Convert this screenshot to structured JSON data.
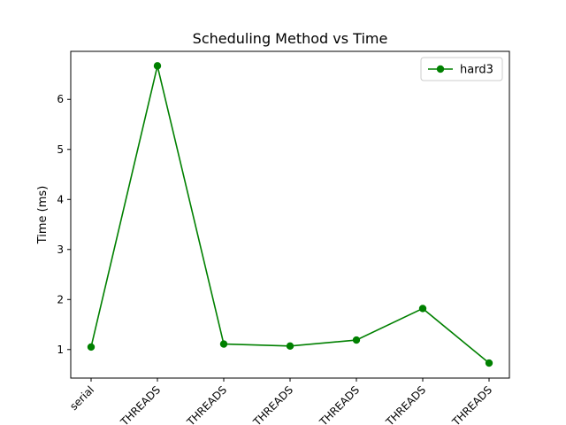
{
  "chart_data": {
    "type": "line",
    "title": "Scheduling Method vs Time",
    "xlabel": "",
    "ylabel": "Time (ms)",
    "categories": [
      "serial",
      "THREADS",
      "THREADS",
      "THREADS",
      "THREADS",
      "THREADS",
      "THREADS"
    ],
    "yticks": [
      "1",
      "2",
      "3",
      "4",
      "5",
      "6"
    ],
    "ylim": [
      0.43,
      6.96
    ],
    "grid": false,
    "legend_position": "top-right",
    "series": [
      {
        "name": "hard3",
        "color": "#008000",
        "marker": "circle",
        "values": [
          1.05,
          6.67,
          1.11,
          1.07,
          1.19,
          1.82,
          0.73
        ]
      }
    ]
  }
}
